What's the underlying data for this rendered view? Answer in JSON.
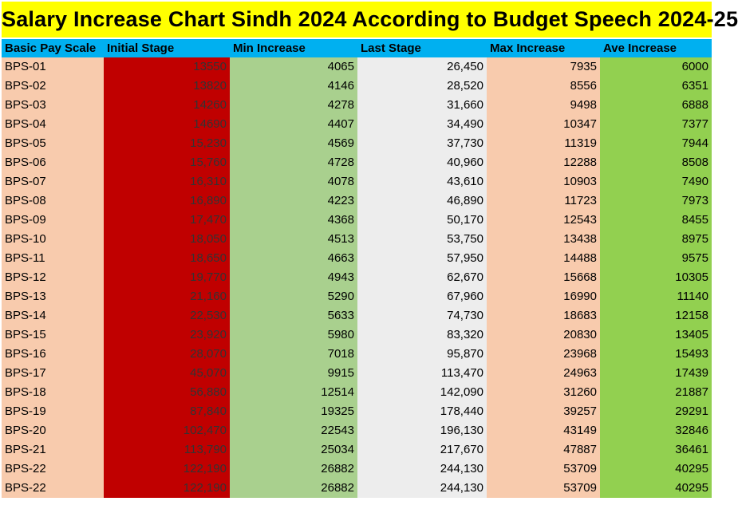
{
  "title": "Salary Increase Chart Sindh 2024 According to Budget Speech 2024-25",
  "columns": [
    "Basic Pay Scale",
    "Initial Stage",
    "Min Increase",
    "Last Stage",
    "Max Increase",
    "Ave Increase"
  ],
  "rows": [
    [
      "BPS-01",
      "13550",
      "4065",
      "26,450",
      "7935",
      "6000"
    ],
    [
      "BPS-02",
      "13820",
      "4146",
      "28,520",
      "8556",
      "6351"
    ],
    [
      "BPS-03",
      "14260",
      "4278",
      "31,660",
      "9498",
      "6888"
    ],
    [
      "BPS-04",
      "14690",
      "4407",
      "34,490",
      "10347",
      "7377"
    ],
    [
      "BPS-05",
      "15,230",
      "4569",
      "37,730",
      "11319",
      "7944"
    ],
    [
      "BPS-06",
      "15,760",
      "4728",
      "40,960",
      "12288",
      "8508"
    ],
    [
      "BPS-07",
      "16,310",
      "4078",
      "43,610",
      "10903",
      "7490"
    ],
    [
      "BPS-08",
      "16,890",
      "4223",
      "46,890",
      "11723",
      "7973"
    ],
    [
      "BPS-09",
      "17,470",
      "4368",
      "50,170",
      "12543",
      "8455"
    ],
    [
      "BPS-10",
      "18,050",
      "4513",
      "53,750",
      "13438",
      "8975"
    ],
    [
      "BPS-11",
      "18,650",
      "4663",
      "57,950",
      "14488",
      "9575"
    ],
    [
      "BPS-12",
      "19,770",
      "4943",
      "62,670",
      "15668",
      "10305"
    ],
    [
      "BPS-13",
      "21,160",
      "5290",
      "67,960",
      "16990",
      "11140"
    ],
    [
      "BPS-14",
      "22,530",
      "5633",
      "74,730",
      "18683",
      "12158"
    ],
    [
      "BPS-15",
      "23,920",
      "5980",
      "83,320",
      "20830",
      "13405"
    ],
    [
      "BPS-16",
      "28,070",
      "7018",
      "95,870",
      "23968",
      "15493"
    ],
    [
      "BPS-17",
      "45,070",
      "9915",
      "113,470",
      "24963",
      "17439"
    ],
    [
      "BPS-18",
      "56,880",
      "12514",
      "142,090",
      "31260",
      "21887"
    ],
    [
      "BPS-19",
      "87,840",
      "19325",
      "178,440",
      "39257",
      "29291"
    ],
    [
      "BPS-20",
      "102,470",
      "22543",
      "196,130",
      "43149",
      "32846"
    ],
    [
      "BPS-21",
      "113,790",
      "25034",
      "217,670",
      "47887",
      "36461"
    ],
    [
      "BPS-22",
      "122,190",
      "26882",
      "244,130",
      "53709",
      "40295"
    ],
    [
      "BPS-22",
      "122,190",
      "26882",
      "244,130",
      "53709",
      "40295"
    ]
  ],
  "colors": {
    "title_bg": "#ffff00",
    "header_bg": "#00b0f0",
    "scale_bg": "#f8cbad",
    "initial_bg": "#c00000",
    "min_bg": "#a9d08e",
    "last_bg": "#ededed",
    "max_bg": "#f8cbad",
    "ave_bg": "#92d050"
  }
}
